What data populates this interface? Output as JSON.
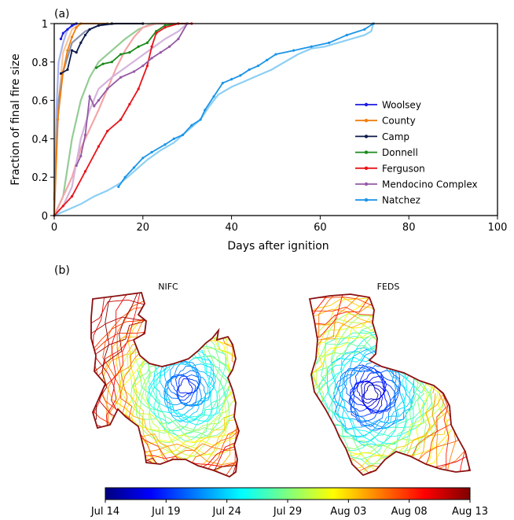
{
  "panel_a_label": "(a)",
  "panel_b_label": "(b)",
  "chart_data": [
    {
      "type": "line",
      "xlabel": "Days after ignition",
      "ylabel": "Fraction of final fire size",
      "xlim": [
        0,
        100
      ],
      "ylim": [
        0,
        1
      ],
      "xticks": [
        0,
        20,
        40,
        60,
        80,
        100
      ],
      "yticks": [
        0,
        0.2,
        0.4,
        0.6,
        0.8,
        1
      ],
      "ytick_labels": [
        "0",
        "0.2",
        "0.4",
        "0.6",
        "0.8",
        "1"
      ],
      "legend_position": "lower-right",
      "grid": false,
      "series": [
        {
          "name": "Woolsey",
          "color": "#1a1adf",
          "light": "#a9b4f0",
          "observed": [
            [
              1.5,
              0.92
            ],
            [
              2,
              0.95
            ],
            [
              3,
              0.97
            ],
            [
              4,
              0.99
            ],
            [
              5,
              1
            ]
          ],
          "reference": [
            [
              0,
              0
            ],
            [
              0.5,
              0.55
            ],
            [
              1,
              0.8
            ],
            [
              2,
              0.9
            ],
            [
              3,
              0.97
            ],
            [
              5,
              1
            ]
          ]
        },
        {
          "name": "County",
          "color": "#f07f0e",
          "light": "#f9c69b",
          "observed": [
            [
              0,
              0
            ],
            [
              0.8,
              0.5
            ],
            [
              2,
              0.75
            ],
            [
              3,
              0.86
            ],
            [
              4,
              0.93
            ],
            [
              5,
              0.98
            ],
            [
              6,
              1
            ],
            [
              12,
              1
            ]
          ],
          "reference": [
            [
              0,
              0
            ],
            [
              1,
              0.6
            ],
            [
              2,
              0.85
            ],
            [
              4,
              0.97
            ],
            [
              6,
              1
            ],
            [
              12,
              1
            ]
          ]
        },
        {
          "name": "Camp",
          "color": "#0d1a4a",
          "light": "#8c93ad",
          "observed": [
            [
              1.5,
              0.74
            ],
            [
              3,
              0.76
            ],
            [
              4,
              0.86
            ],
            [
              5,
              0.85
            ],
            [
              6,
              0.9
            ],
            [
              7,
              0.94
            ],
            [
              8,
              0.97
            ],
            [
              10,
              0.99
            ],
            [
              13,
              1
            ],
            [
              20,
              1
            ]
          ],
          "reference": [
            [
              0,
              0.08
            ],
            [
              1,
              0.6
            ],
            [
              2,
              0.75
            ],
            [
              4,
              0.9
            ],
            [
              7,
              0.96
            ],
            [
              10,
              0.99
            ],
            [
              14,
              1
            ],
            [
              20,
              1
            ]
          ]
        },
        {
          "name": "Donnell",
          "color": "#1a8a1a",
          "light": "#94cc94",
          "observed": [
            [
              9.5,
              0.77
            ],
            [
              11,
              0.79
            ],
            [
              13,
              0.8
            ],
            [
              15,
              0.84
            ],
            [
              17,
              0.85
            ],
            [
              19,
              0.88
            ],
            [
              21,
              0.9
            ],
            [
              23,
              0.96
            ],
            [
              25,
              0.99
            ],
            [
              28,
              1
            ],
            [
              30,
              1
            ]
          ],
          "reference": [
            [
              0,
              0
            ],
            [
              2,
              0.1
            ],
            [
              4,
              0.4
            ],
            [
              6,
              0.6
            ],
            [
              8,
              0.72
            ],
            [
              10,
              0.8
            ],
            [
              13,
              0.86
            ],
            [
              16,
              0.92
            ],
            [
              19,
              0.97
            ],
            [
              22,
              1
            ],
            [
              30,
              1
            ]
          ]
        },
        {
          "name": "Ferguson",
          "color": "#e8141a",
          "light": "#f5a5a7",
          "observed": [
            [
              0,
              0
            ],
            [
              2,
              0.05
            ],
            [
              4,
              0.1
            ],
            [
              7,
              0.23
            ],
            [
              10,
              0.36
            ],
            [
              12,
              0.44
            ],
            [
              15,
              0.5
            ],
            [
              17,
              0.58
            ],
            [
              19,
              0.66
            ],
            [
              21,
              0.78
            ],
            [
              22,
              0.88
            ],
            [
              23,
              0.95
            ],
            [
              25,
              0.98
            ],
            [
              28,
              1
            ],
            [
              31,
              1
            ]
          ],
          "reference": [
            [
              0,
              0
            ],
            [
              2,
              0.1
            ],
            [
              4,
              0.2
            ],
            [
              6,
              0.35
            ],
            [
              8,
              0.45
            ],
            [
              10,
              0.55
            ],
            [
              12,
              0.66
            ],
            [
              14,
              0.77
            ],
            [
              16,
              0.86
            ],
            [
              18,
              0.93
            ],
            [
              20,
              0.98
            ],
            [
              23,
              1
            ],
            [
              28,
              1
            ]
          ]
        },
        {
          "name": "Mendocino Complex",
          "color": "#955aa5",
          "light": "#d4b4dc",
          "observed": [
            [
              5,
              0.26
            ],
            [
              6,
              0.31
            ],
            [
              7,
              0.42
            ],
            [
              8,
              0.62
            ],
            [
              9,
              0.57
            ],
            [
              10,
              0.6
            ],
            [
              12,
              0.66
            ],
            [
              15,
              0.72
            ],
            [
              18,
              0.75
            ],
            [
              20,
              0.78
            ],
            [
              22,
              0.82
            ],
            [
              24,
              0.85
            ],
            [
              26,
              0.88
            ],
            [
              28,
              0.92
            ],
            [
              30,
              1
            ]
          ],
          "reference": [
            [
              0,
              0
            ],
            [
              2,
              0.05
            ],
            [
              4,
              0.15
            ],
            [
              6,
              0.4
            ],
            [
              8,
              0.55
            ],
            [
              10,
              0.66
            ],
            [
              13,
              0.72
            ],
            [
              16,
              0.77
            ],
            [
              19,
              0.82
            ],
            [
              22,
              0.87
            ],
            [
              25,
              0.92
            ],
            [
              28,
              0.96
            ],
            [
              30,
              1
            ]
          ]
        },
        {
          "name": "Natchez",
          "color": "#1a94e8",
          "light": "#8ccff5",
          "observed": [
            [
              14.5,
              0.15
            ],
            [
              16,
              0.2
            ],
            [
              18,
              0.25
            ],
            [
              20,
              0.3
            ],
            [
              22,
              0.33
            ],
            [
              25,
              0.37
            ],
            [
              27,
              0.4
            ],
            [
              29,
              0.42
            ],
            [
              31,
              0.47
            ],
            [
              33,
              0.5
            ],
            [
              34,
              0.55
            ],
            [
              36,
              0.62
            ],
            [
              38,
              0.69
            ],
            [
              40,
              0.71
            ],
            [
              42,
              0.73
            ],
            [
              44,
              0.76
            ],
            [
              46,
              0.78
            ],
            [
              48,
              0.81
            ],
            [
              50,
              0.84
            ],
            [
              54,
              0.86
            ],
            [
              58,
              0.88
            ],
            [
              62,
              0.9
            ],
            [
              66,
              0.94
            ],
            [
              70,
              0.97
            ],
            [
              72,
              1
            ]
          ],
          "reference": [
            [
              0,
              0
            ],
            [
              3,
              0.03
            ],
            [
              6,
              0.06
            ],
            [
              9,
              0.1
            ],
            [
              12,
              0.13
            ],
            [
              15,
              0.17
            ],
            [
              18,
              0.23
            ],
            [
              21,
              0.29
            ],
            [
              24,
              0.34
            ],
            [
              27,
              0.38
            ],
            [
              30,
              0.44
            ],
            [
              33,
              0.5
            ],
            [
              35,
              0.57
            ],
            [
              37,
              0.63
            ],
            [
              40,
              0.67
            ],
            [
              43,
              0.7
            ],
            [
              46,
              0.73
            ],
            [
              49,
              0.76
            ],
            [
              52,
              0.8
            ],
            [
              55,
              0.84
            ],
            [
              58,
              0.87
            ],
            [
              61,
              0.88
            ],
            [
              64,
              0.9
            ],
            [
              67,
              0.92
            ],
            [
              70,
              0.94
            ],
            [
              71.5,
              0.96
            ],
            [
              72,
              1
            ]
          ]
        }
      ]
    },
    {
      "type": "map",
      "titles": [
        "NIFC",
        "FEDS"
      ],
      "colorbar": {
        "ticks": [
          "Jul 14",
          "Jul 19",
          "Jul 24",
          "Jul 29",
          "Aug 03",
          "Aug 08",
          "Aug 13"
        ],
        "colors": [
          "#00007f",
          "#0000ff",
          "#007fff",
          "#00ffff",
          "#7fff7f",
          "#ffff00",
          "#ff7f00",
          "#ff0000",
          "#7f0000"
        ]
      },
      "boundary_color": "#8b1010"
    }
  ]
}
